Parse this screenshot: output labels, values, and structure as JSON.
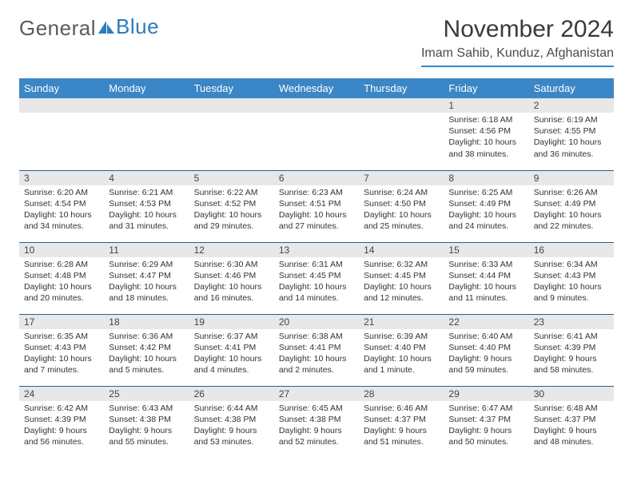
{
  "logo": {
    "text_gray": "General",
    "text_blue": "Blue"
  },
  "title": "November 2024",
  "location": "Imam Sahib, Kunduz, Afghanistan",
  "colors": {
    "header_bg": "#3b86c6",
    "header_text": "#ffffff",
    "daynum_bg": "#e8e8e8",
    "row_border": "#2b5f8f",
    "logo_gray": "#5a5a5a",
    "logo_blue": "#2b7bbf"
  },
  "weekdays": [
    "Sunday",
    "Monday",
    "Tuesday",
    "Wednesday",
    "Thursday",
    "Friday",
    "Saturday"
  ],
  "weeks": [
    [
      null,
      null,
      null,
      null,
      null,
      {
        "num": "1",
        "sunrise": "6:18 AM",
        "sunset": "4:56 PM",
        "daylight": "10 hours and 38 minutes."
      },
      {
        "num": "2",
        "sunrise": "6:19 AM",
        "sunset": "4:55 PM",
        "daylight": "10 hours and 36 minutes."
      }
    ],
    [
      {
        "num": "3",
        "sunrise": "6:20 AM",
        "sunset": "4:54 PM",
        "daylight": "10 hours and 34 minutes."
      },
      {
        "num": "4",
        "sunrise": "6:21 AM",
        "sunset": "4:53 PM",
        "daylight": "10 hours and 31 minutes."
      },
      {
        "num": "5",
        "sunrise": "6:22 AM",
        "sunset": "4:52 PM",
        "daylight": "10 hours and 29 minutes."
      },
      {
        "num": "6",
        "sunrise": "6:23 AM",
        "sunset": "4:51 PM",
        "daylight": "10 hours and 27 minutes."
      },
      {
        "num": "7",
        "sunrise": "6:24 AM",
        "sunset": "4:50 PM",
        "daylight": "10 hours and 25 minutes."
      },
      {
        "num": "8",
        "sunrise": "6:25 AM",
        "sunset": "4:49 PM",
        "daylight": "10 hours and 24 minutes."
      },
      {
        "num": "9",
        "sunrise": "6:26 AM",
        "sunset": "4:49 PM",
        "daylight": "10 hours and 22 minutes."
      }
    ],
    [
      {
        "num": "10",
        "sunrise": "6:28 AM",
        "sunset": "4:48 PM",
        "daylight": "10 hours and 20 minutes."
      },
      {
        "num": "11",
        "sunrise": "6:29 AM",
        "sunset": "4:47 PM",
        "daylight": "10 hours and 18 minutes."
      },
      {
        "num": "12",
        "sunrise": "6:30 AM",
        "sunset": "4:46 PM",
        "daylight": "10 hours and 16 minutes."
      },
      {
        "num": "13",
        "sunrise": "6:31 AM",
        "sunset": "4:45 PM",
        "daylight": "10 hours and 14 minutes."
      },
      {
        "num": "14",
        "sunrise": "6:32 AM",
        "sunset": "4:45 PM",
        "daylight": "10 hours and 12 minutes."
      },
      {
        "num": "15",
        "sunrise": "6:33 AM",
        "sunset": "4:44 PM",
        "daylight": "10 hours and 11 minutes."
      },
      {
        "num": "16",
        "sunrise": "6:34 AM",
        "sunset": "4:43 PM",
        "daylight": "10 hours and 9 minutes."
      }
    ],
    [
      {
        "num": "17",
        "sunrise": "6:35 AM",
        "sunset": "4:43 PM",
        "daylight": "10 hours and 7 minutes."
      },
      {
        "num": "18",
        "sunrise": "6:36 AM",
        "sunset": "4:42 PM",
        "daylight": "10 hours and 5 minutes."
      },
      {
        "num": "19",
        "sunrise": "6:37 AM",
        "sunset": "4:41 PM",
        "daylight": "10 hours and 4 minutes."
      },
      {
        "num": "20",
        "sunrise": "6:38 AM",
        "sunset": "4:41 PM",
        "daylight": "10 hours and 2 minutes."
      },
      {
        "num": "21",
        "sunrise": "6:39 AM",
        "sunset": "4:40 PM",
        "daylight": "10 hours and 1 minute."
      },
      {
        "num": "22",
        "sunrise": "6:40 AM",
        "sunset": "4:40 PM",
        "daylight": "9 hours and 59 minutes."
      },
      {
        "num": "23",
        "sunrise": "6:41 AM",
        "sunset": "4:39 PM",
        "daylight": "9 hours and 58 minutes."
      }
    ],
    [
      {
        "num": "24",
        "sunrise": "6:42 AM",
        "sunset": "4:39 PM",
        "daylight": "9 hours and 56 minutes."
      },
      {
        "num": "25",
        "sunrise": "6:43 AM",
        "sunset": "4:38 PM",
        "daylight": "9 hours and 55 minutes."
      },
      {
        "num": "26",
        "sunrise": "6:44 AM",
        "sunset": "4:38 PM",
        "daylight": "9 hours and 53 minutes."
      },
      {
        "num": "27",
        "sunrise": "6:45 AM",
        "sunset": "4:38 PM",
        "daylight": "9 hours and 52 minutes."
      },
      {
        "num": "28",
        "sunrise": "6:46 AM",
        "sunset": "4:37 PM",
        "daylight": "9 hours and 51 minutes."
      },
      {
        "num": "29",
        "sunrise": "6:47 AM",
        "sunset": "4:37 PM",
        "daylight": "9 hours and 50 minutes."
      },
      {
        "num": "30",
        "sunrise": "6:48 AM",
        "sunset": "4:37 PM",
        "daylight": "9 hours and 48 minutes."
      }
    ]
  ],
  "labels": {
    "sunrise": "Sunrise:",
    "sunset": "Sunset:",
    "daylight": "Daylight:"
  }
}
